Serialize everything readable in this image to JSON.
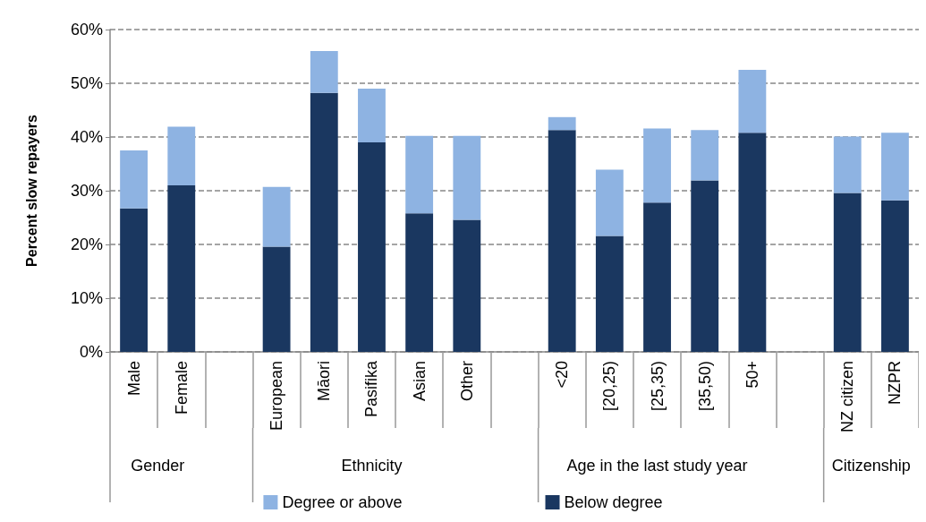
{
  "chart_data": {
    "type": "bar",
    "stacked": true,
    "ylabel": "Percent slow repayers",
    "categories": [
      "Male",
      "Female",
      null,
      "European",
      "Māori",
      "Pasifika",
      "Asian",
      "Other",
      null,
      "<20",
      "[20,25)",
      "[25,35)",
      "[35,50)",
      "50+",
      null,
      "NZ citizen",
      "NZPR"
    ],
    "series": [
      {
        "name": "Below degree",
        "color": "#1a3760",
        "values": [
          26.7,
          31.0,
          null,
          19.6,
          48.2,
          39.0,
          25.8,
          24.6,
          null,
          41.3,
          21.6,
          27.8,
          31.9,
          40.8,
          null,
          29.6,
          28.2
        ]
      },
      {
        "name": "Degree or above",
        "color": "#8eb3e2",
        "values": [
          10.8,
          10.9,
          null,
          11.1,
          7.8,
          10.0,
          14.4,
          15.6,
          null,
          2.4,
          12.3,
          13.8,
          9.4,
          11.7,
          null,
          10.5,
          12.6
        ]
      }
    ],
    "ylim": [
      0,
      60
    ],
    "yticks": [
      {
        "value": 0,
        "label": "0%"
      },
      {
        "value": 10,
        "label": "10%"
      },
      {
        "value": 20,
        "label": "20%"
      },
      {
        "value": 30,
        "label": "30%"
      },
      {
        "value": 40,
        "label": "40%"
      },
      {
        "value": 50,
        "label": "50%"
      },
      {
        "value": 60,
        "label": "60%"
      }
    ],
    "grid": "y",
    "legend": "bottom",
    "annotations": [
      "Gender",
      "Ethnicity",
      "Age in the last study year",
      "Citizenship"
    ]
  }
}
